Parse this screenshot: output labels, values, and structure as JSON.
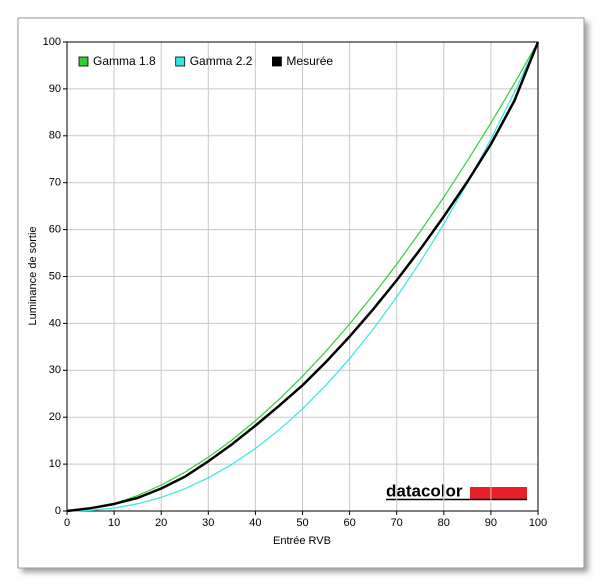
{
  "chart_data": {
    "type": "line",
    "x_label": "Entrée RVB",
    "y_label": "Luminance de sortie",
    "logo": "datacolor",
    "x": [
      0,
      5,
      10,
      15,
      20,
      25,
      30,
      35,
      40,
      45,
      50,
      55,
      60,
      65,
      70,
      75,
      80,
      85,
      90,
      95,
      100
    ],
    "series": [
      {
        "name": "Gamma 1.8",
        "color": "#33cc33",
        "values": [
          0,
          0.45,
          1.58,
          3.29,
          5.52,
          8.25,
          11.45,
          15.11,
          19.22,
          23.76,
          28.72,
          34.09,
          39.87,
          46.05,
          52.62,
          59.58,
          66.92,
          74.64,
          82.72,
          91.18,
          100
        ]
      },
      {
        "name": "Gamma 2.2",
        "color": "#33e6e6",
        "values": [
          0,
          0.14,
          0.63,
          1.54,
          2.9,
          4.74,
          7.07,
          9.93,
          13.32,
          17.26,
          21.76,
          26.84,
          32.5,
          38.76,
          45.63,
          53.1,
          61.2,
          69.94,
          79.31,
          89.33,
          100
        ]
      },
      {
        "name": "Mesurée",
        "color": "#000000",
        "values": [
          0,
          0.6,
          1.5,
          2.8,
          4.8,
          7.3,
          10.6,
          14.2,
          18.2,
          22.4,
          26.8,
          31.8,
          37.2,
          43,
          49.2,
          55.8,
          62.8,
          70.2,
          78.2,
          87.5,
          100
        ]
      }
    ],
    "xlim": [
      0,
      100
    ],
    "ylim": [
      0,
      100
    ],
    "xticks": [
      0,
      10,
      20,
      30,
      40,
      50,
      60,
      70,
      80,
      90,
      100
    ],
    "yticks": [
      0,
      10,
      20,
      30,
      40,
      50,
      60,
      70,
      80,
      90,
      100
    ],
    "grid": true,
    "legend": "top-left"
  }
}
